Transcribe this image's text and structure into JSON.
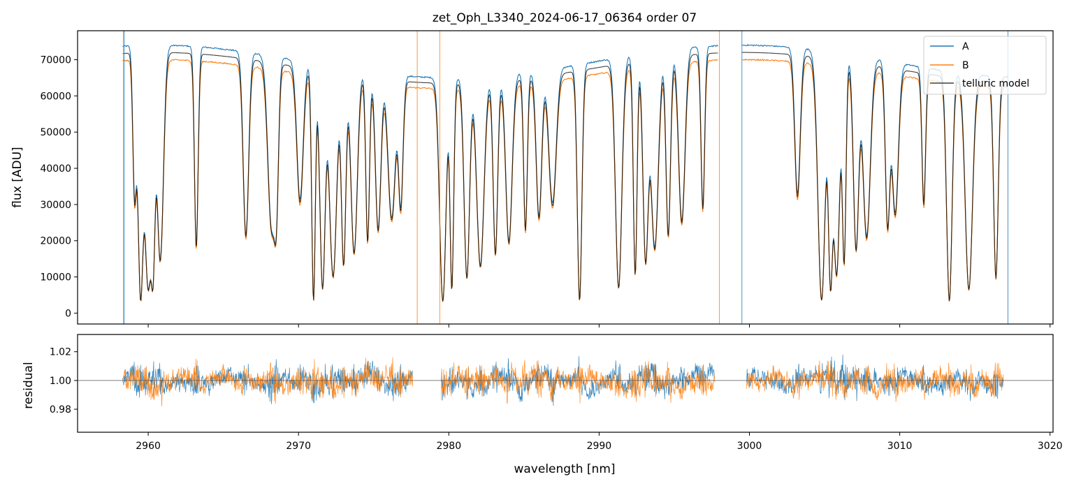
{
  "chart_data": [
    {
      "type": "line",
      "title": "zet_Oph_L3340_2024-06-17_06364  order 07",
      "xlabel": "",
      "ylabel": "flux [ADU]",
      "xlim": [
        2955.3,
        3020.2
      ],
      "ylim": [
        -3000,
        78000
      ],
      "yticks": [
        0,
        10000,
        20000,
        30000,
        40000,
        50000,
        60000,
        70000
      ],
      "ytick_labels": [
        "0",
        "10000",
        "20000",
        "30000",
        "40000",
        "50000",
        "60000",
        "70000"
      ],
      "grid": false,
      "legend": {
        "placement": "top-right",
        "entries": [
          "A",
          "B",
          "telluric model"
        ]
      },
      "series": [
        {
          "name": "A",
          "color": "#1f77b4",
          "x_range": [
            2958.3,
            3017.2
          ],
          "continuum": [
            65000,
            74000
          ],
          "gap_nm": [
            2997.9,
            2999.5
          ]
        },
        {
          "name": "B",
          "color": "#ff7f0e",
          "x_range": [
            2958.3,
            3017.2
          ],
          "continuum": [
            62000,
            70000
          ],
          "gap_nm": [
            2997.9,
            2999.5
          ]
        },
        {
          "name": "telluric model",
          "color": "#000000"
        }
      ],
      "absorption_lines_nm": [
        2959.1,
        2959.5,
        2960.0,
        2960.3,
        2960.8,
        2963.2,
        2966.5,
        2968.2,
        2968.5,
        2970.1,
        2971.0,
        2971.6,
        2972.3,
        2973.0,
        2973.7,
        2974.6,
        2975.3,
        2976.2,
        2976.8,
        2979.6,
        2980.2,
        2981.2,
        2982.1,
        2983.1,
        2984.0,
        2985.1,
        2986.0,
        2986.9,
        2988.7,
        2991.3,
        2992.4,
        2993.1,
        2993.7,
        2994.6,
        2995.5,
        2996.9,
        3003.2,
        3004.8,
        3005.4,
        3005.8,
        3006.3,
        3007.1,
        3007.8,
        3009.2,
        3009.7,
        3011.6,
        3013.3,
        3014.6,
        3016.4
      ]
    },
    {
      "type": "line",
      "xlabel": "wavelength [nm]",
      "ylabel": "residual",
      "xlim": [
        2955.3,
        3020.2
      ],
      "ylim": [
        0.964,
        1.032
      ],
      "yticks": [
        0.98,
        1.0,
        1.02
      ],
      "ytick_labels": [
        "0.98",
        "1.00",
        "1.02"
      ],
      "xticks": [
        2960,
        2970,
        2980,
        2990,
        3000,
        3010,
        3020
      ],
      "xtick_labels": [
        "2960",
        "2970",
        "2980",
        "2990",
        "3000",
        "3010",
        "3020"
      ],
      "reference_line": 1.0,
      "series": [
        {
          "name": "A",
          "color": "#1f77b4",
          "center": 1.0,
          "scatter": 0.006
        },
        {
          "name": "B",
          "color": "#ff7f0e",
          "center": 1.0,
          "scatter": 0.007
        }
      ]
    }
  ]
}
